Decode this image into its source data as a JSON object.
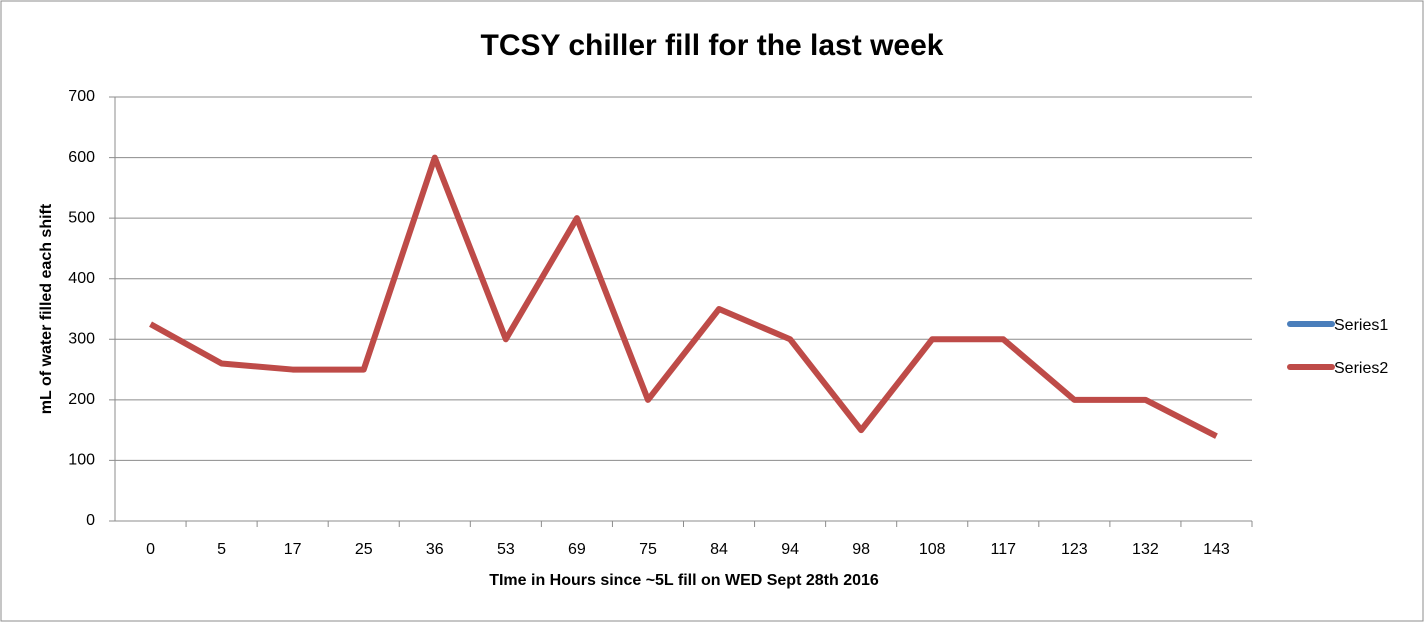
{
  "chart_data": {
    "type": "line",
    "title": "TCSY chiller fill for the last week",
    "x_label": "TIme in Hours since ~5L fill on WED Sept 28th 2016",
    "y_label": "mL of water filled each shift",
    "categories": [
      "0",
      "5",
      "17",
      "25",
      "36",
      "53",
      "69",
      "75",
      "84",
      "94",
      "98",
      "108",
      "117",
      "123",
      "132",
      "143"
    ],
    "series": [
      {
        "name": "Series1",
        "color": "#4a7ebb",
        "values": [
          null,
          null,
          null,
          null,
          null,
          null,
          null,
          null,
          null,
          null,
          null,
          null,
          null,
          null,
          null,
          null
        ]
      },
      {
        "name": "Series2",
        "color": "#be4b48",
        "values": [
          325,
          260,
          250,
          250,
          600,
          300,
          500,
          200,
          350,
          300,
          150,
          300,
          300,
          200,
          200,
          140
        ]
      }
    ],
    "ylim": [
      0,
      700
    ],
    "yticks": [
      0,
      100,
      200,
      300,
      400,
      500,
      600,
      700
    ],
    "grid": true,
    "legend": "right"
  }
}
